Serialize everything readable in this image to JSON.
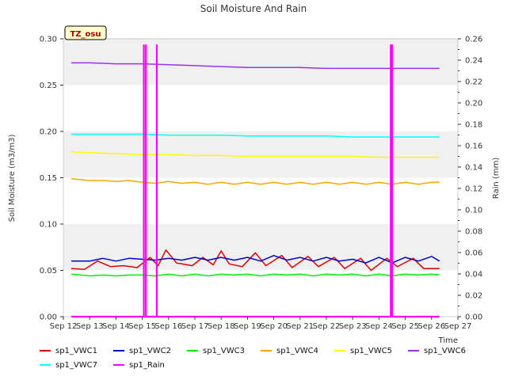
{
  "chart_data": {
    "type": "line",
    "title": "Soil Moisture And Rain",
    "ylabel": "Soil Moisture (m3/m3)",
    "y2label": "Rain (mm)",
    "xlabel": "Time",
    "site_label": "TZ_osu",
    "x_categories": [
      "Sep 12",
      "Sep 13",
      "Sep 14",
      "Sep 15",
      "Sep 16",
      "Sep 17",
      "Sep 18",
      "Sep 19",
      "Sep 20",
      "Sep 21",
      "Sep 22",
      "Sep 23",
      "Sep 24",
      "Sep 25",
      "Sep 26",
      "Sep 27"
    ],
    "x_range_days": [
      12,
      27
    ],
    "ylim": [
      0.0,
      0.3
    ],
    "y_ticks": [
      "0.00",
      "0.05",
      "0.10",
      "0.15",
      "0.20",
      "0.25",
      "0.30"
    ],
    "y2lim": [
      0.0,
      0.26
    ],
    "y2_ticks": [
      "0.00",
      "0.02",
      "0.04",
      "0.06",
      "0.08",
      "0.10",
      "0.12",
      "0.14",
      "0.16",
      "0.18",
      "0.20",
      "0.22",
      "0.24",
      "0.26"
    ],
    "background_bands": "alternating grey bands",
    "legend_position": "bottom",
    "series": [
      {
        "name": "sp1_VWC1",
        "color": "#dd0000",
        "axis": "left",
        "x": [
          12.3,
          12.8,
          13.3,
          13.8,
          14.3,
          14.8,
          15.3,
          15.6,
          15.9,
          16.3,
          16.9,
          17.3,
          17.7,
          18.0,
          18.3,
          18.8,
          19.3,
          19.7,
          20.3,
          20.7,
          21.3,
          21.7,
          22.3,
          22.7,
          23.3,
          23.7,
          24.3,
          24.7,
          25.3,
          25.7,
          26.3
        ],
        "y": [
          0.052,
          0.051,
          0.06,
          0.054,
          0.055,
          0.053,
          0.064,
          0.055,
          0.072,
          0.058,
          0.055,
          0.064,
          0.056,
          0.071,
          0.057,
          0.054,
          0.069,
          0.055,
          0.066,
          0.053,
          0.065,
          0.054,
          0.064,
          0.052,
          0.063,
          0.05,
          0.063,
          0.054,
          0.063,
          0.052,
          0.052
        ]
      },
      {
        "name": "sp1_VWC2",
        "color": "#0000cc",
        "axis": "left",
        "x": [
          12.3,
          13.0,
          13.5,
          14.0,
          14.5,
          15.0,
          15.5,
          16.0,
          16.5,
          17.0,
          17.5,
          18.0,
          18.5,
          19.0,
          19.5,
          20.0,
          20.5,
          21.0,
          21.5,
          22.0,
          22.5,
          23.0,
          23.5,
          24.0,
          24.5,
          25.0,
          25.5,
          26.0,
          26.3
        ],
        "y": [
          0.06,
          0.06,
          0.063,
          0.06,
          0.063,
          0.062,
          0.061,
          0.063,
          0.061,
          0.064,
          0.061,
          0.064,
          0.061,
          0.064,
          0.06,
          0.066,
          0.061,
          0.064,
          0.06,
          0.064,
          0.06,
          0.062,
          0.058,
          0.064,
          0.058,
          0.064,
          0.06,
          0.065,
          0.06
        ]
      },
      {
        "name": "sp1_VWC3",
        "color": "#00ee00",
        "axis": "left",
        "x": [
          12.3,
          13.0,
          13.5,
          14.0,
          14.5,
          15.0,
          15.5,
          16.0,
          16.5,
          17.0,
          17.5,
          18.0,
          18.5,
          19.0,
          19.5,
          20.0,
          20.5,
          21.0,
          21.5,
          22.0,
          22.5,
          23.0,
          23.5,
          24.0,
          24.5,
          25.0,
          25.5,
          26.0,
          26.3
        ],
        "y": [
          0.046,
          0.044,
          0.045,
          0.044,
          0.045,
          0.045,
          0.044,
          0.046,
          0.044,
          0.046,
          0.044,
          0.046,
          0.045,
          0.046,
          0.044,
          0.046,
          0.045,
          0.046,
          0.044,
          0.046,
          0.045,
          0.046,
          0.044,
          0.046,
          0.044,
          0.046,
          0.045,
          0.046,
          0.045
        ]
      },
      {
        "name": "sp1_VWC4",
        "color": "#ffa500",
        "axis": "left",
        "x": [
          12.3,
          13.0,
          13.5,
          14.0,
          14.5,
          15.0,
          15.5,
          16.0,
          16.5,
          17.0,
          17.5,
          18.0,
          18.5,
          19.0,
          19.5,
          20.0,
          20.5,
          21.0,
          21.5,
          22.0,
          22.5,
          23.0,
          23.5,
          24.0,
          24.5,
          25.0,
          25.5,
          26.0,
          26.3
        ],
        "y": [
          0.149,
          0.147,
          0.147,
          0.146,
          0.147,
          0.145,
          0.144,
          0.146,
          0.144,
          0.145,
          0.143,
          0.145,
          0.143,
          0.145,
          0.143,
          0.145,
          0.143,
          0.145,
          0.143,
          0.145,
          0.143,
          0.145,
          0.143,
          0.145,
          0.143,
          0.145,
          0.143,
          0.145,
          0.145
        ]
      },
      {
        "name": "sp1_VWC5",
        "color": "#ffff00",
        "axis": "left",
        "x": [
          12.3,
          13.0,
          14.0,
          15.0,
          16.0,
          17.0,
          18.0,
          19.0,
          20.0,
          21.0,
          22.0,
          23.0,
          24.0,
          25.0,
          26.0,
          26.3
        ],
        "y": [
          0.178,
          0.177,
          0.176,
          0.175,
          0.175,
          0.174,
          0.174,
          0.173,
          0.173,
          0.173,
          0.173,
          0.173,
          0.172,
          0.172,
          0.172,
          0.172
        ]
      },
      {
        "name": "sp1_VWC6",
        "color": "#9933ee",
        "axis": "left",
        "x": [
          12.3,
          13.0,
          14.0,
          15.0,
          16.0,
          17.0,
          18.0,
          19.0,
          20.0,
          21.0,
          22.0,
          23.0,
          24.0,
          25.0,
          26.0,
          26.3
        ],
        "y": [
          0.274,
          0.274,
          0.273,
          0.273,
          0.272,
          0.271,
          0.27,
          0.269,
          0.269,
          0.269,
          0.268,
          0.268,
          0.268,
          0.268,
          0.268,
          0.268
        ]
      },
      {
        "name": "sp1_VWC7",
        "color": "#00ffff",
        "axis": "left",
        "x": [
          12.3,
          13.0,
          14.0,
          15.0,
          16.0,
          17.0,
          18.0,
          19.0,
          20.0,
          21.0,
          22.0,
          23.0,
          24.0,
          25.0,
          26.0,
          26.3
        ],
        "y": [
          0.197,
          0.197,
          0.197,
          0.197,
          0.196,
          0.196,
          0.196,
          0.195,
          0.195,
          0.195,
          0.195,
          0.194,
          0.194,
          0.194,
          0.194,
          0.194
        ]
      },
      {
        "name": "sp1_Rain",
        "color": "#ff00ff",
        "axis": "right",
        "x": [
          12.3,
          15.06,
          15.06,
          15.06,
          15.14,
          15.14,
          15.14,
          15.55,
          15.55,
          15.55,
          24.45,
          24.45,
          24.45,
          24.5,
          24.5,
          24.5,
          26.3
        ],
        "y": [
          0,
          0,
          0.254,
          0,
          0,
          0.254,
          0,
          0,
          0.254,
          0,
          0,
          0.254,
          0,
          0,
          0.254,
          0,
          0
        ]
      }
    ]
  }
}
